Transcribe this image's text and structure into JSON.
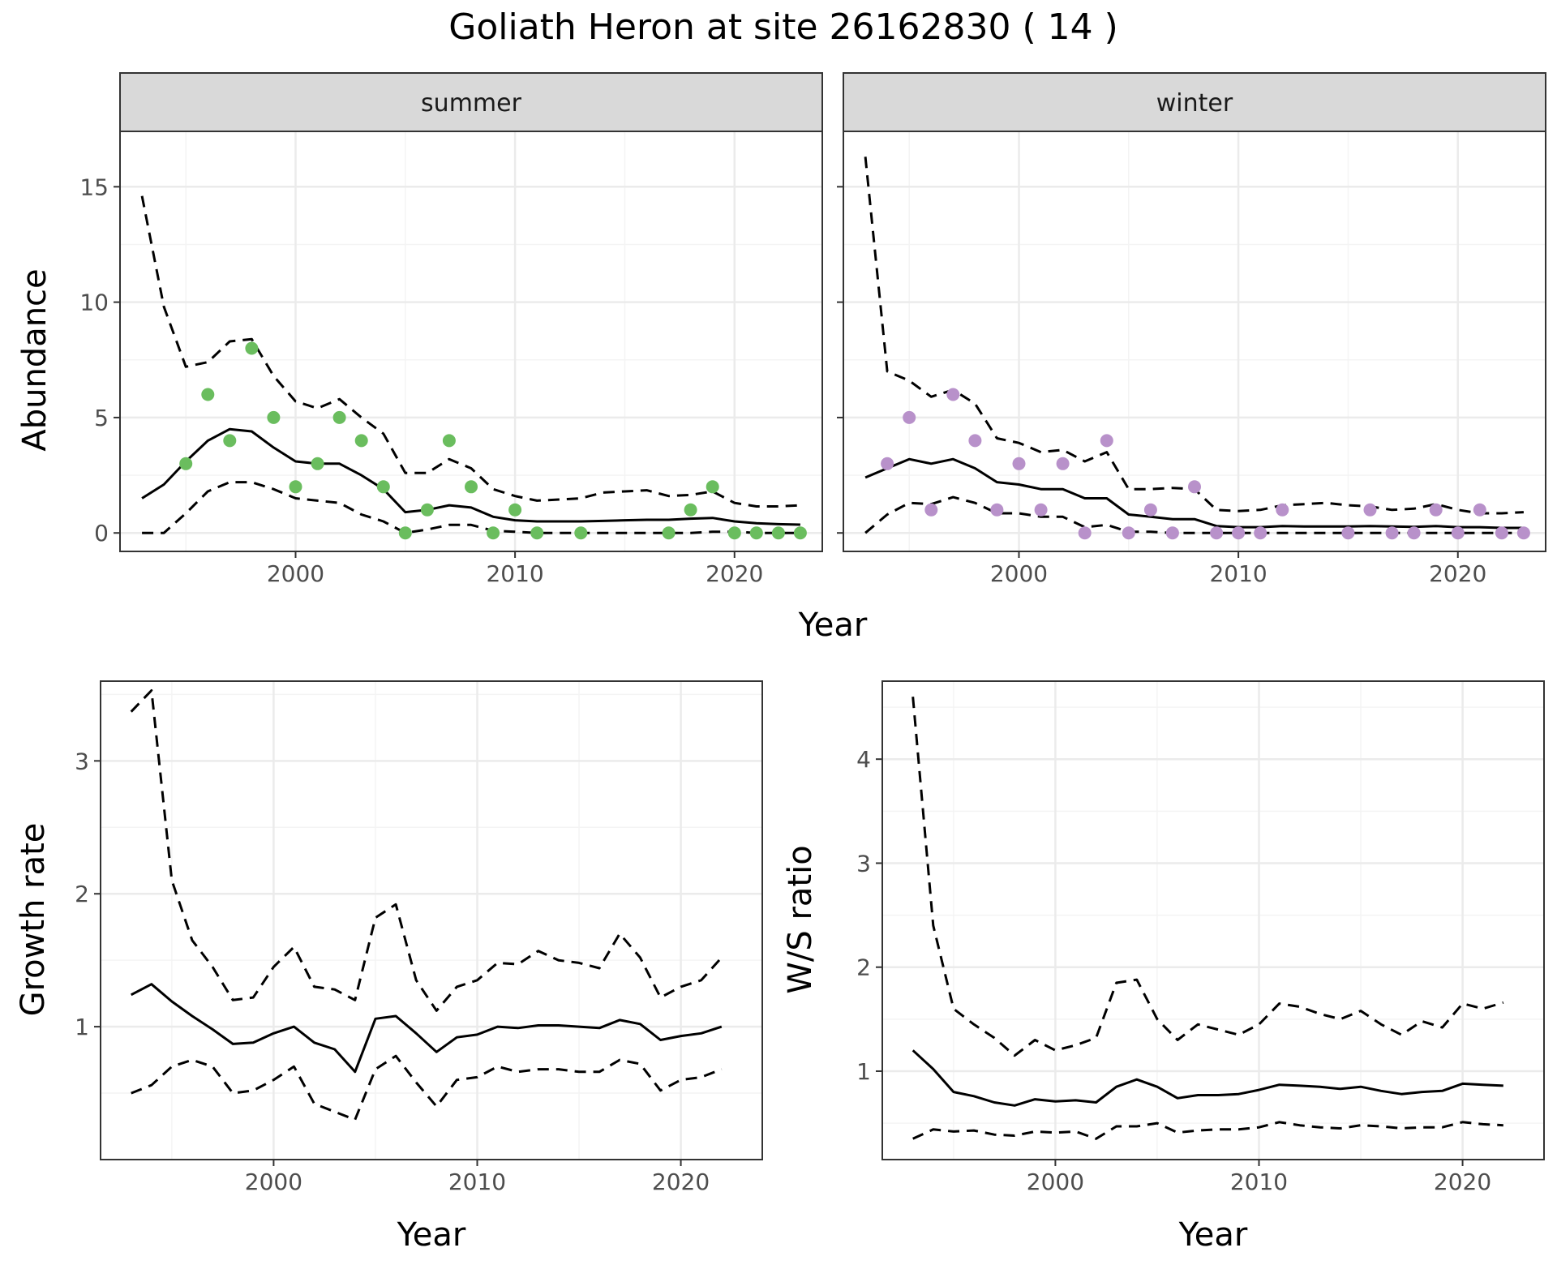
{
  "title": "Goliath Heron at site 26162830 ( 14 )",
  "colors": {
    "summer_points": "#6ABD5E",
    "winter_points": "#B891CA",
    "line": "#000000",
    "strip_bg": "#d9d9d9",
    "grid_major": "#ebebeb",
    "grid_minor": "#f4f4f4",
    "panel_border": "#333333"
  },
  "chart_data": [
    {
      "type": "line",
      "facet": "summer",
      "xlabel": "Year",
      "ylabel": "Abundance",
      "xlim": [
        1992,
        2024
      ],
      "ylim": [
        -0.8,
        17.4
      ],
      "xticks": [
        2000,
        2010,
        2020
      ],
      "yticks": [
        0,
        5,
        10,
        15
      ],
      "years": [
        1993,
        1994,
        1995,
        1996,
        1997,
        1998,
        1999,
        2000,
        2001,
        2002,
        2003,
        2004,
        2005,
        2006,
        2007,
        2008,
        2009,
        2010,
        2011,
        2012,
        2013,
        2014,
        2015,
        2016,
        2017,
        2018,
        2019,
        2020,
        2021,
        2022,
        2023
      ],
      "series": [
        {
          "role": "estimate",
          "values": [
            1.5,
            2.1,
            3.1,
            4.0,
            4.5,
            4.4,
            3.7,
            3.1,
            3.0,
            3.0,
            2.5,
            1.9,
            0.9,
            1.0,
            1.2,
            1.1,
            0.7,
            0.55,
            0.5,
            0.5,
            0.5,
            0.52,
            0.55,
            0.57,
            0.57,
            0.62,
            0.65,
            0.5,
            0.42,
            0.38,
            0.36
          ]
        },
        {
          "role": "upper",
          "values": [
            14.6,
            9.8,
            7.2,
            7.4,
            8.3,
            8.4,
            6.8,
            5.7,
            5.4,
            5.8,
            5.0,
            4.3,
            2.6,
            2.6,
            3.2,
            2.8,
            1.9,
            1.6,
            1.4,
            1.45,
            1.5,
            1.75,
            1.8,
            1.85,
            1.6,
            1.65,
            1.8,
            1.3,
            1.15,
            1.15,
            1.2
          ]
        },
        {
          "role": "lower",
          "values": [
            0,
            0,
            0.85,
            1.8,
            2.2,
            2.2,
            1.9,
            1.5,
            1.4,
            1.3,
            0.8,
            0.5,
            0,
            0.15,
            0.35,
            0.35,
            0.1,
            0.05,
            0,
            0,
            0,
            0,
            0,
            0,
            0,
            0,
            0.05,
            0.05,
            0,
            0,
            0
          ]
        }
      ],
      "points": [
        [
          1995,
          3
        ],
        [
          1996,
          6
        ],
        [
          1997,
          4
        ],
        [
          1998,
          8
        ],
        [
          1999,
          5
        ],
        [
          2000,
          2
        ],
        [
          2001,
          3
        ],
        [
          2002,
          5
        ],
        [
          2003,
          4
        ],
        [
          2004,
          2
        ],
        [
          2005,
          0
        ],
        [
          2006,
          1
        ],
        [
          2007,
          4
        ],
        [
          2008,
          2
        ],
        [
          2009,
          0
        ],
        [
          2010,
          1
        ],
        [
          2011,
          0
        ],
        [
          2013,
          0
        ],
        [
          2017,
          0
        ],
        [
          2018,
          1
        ],
        [
          2019,
          2
        ],
        [
          2020,
          0
        ],
        [
          2021,
          0
        ],
        [
          2022,
          0
        ],
        [
          2023,
          0
        ]
      ]
    },
    {
      "type": "line",
      "facet": "winter",
      "xlabel": "Year",
      "ylabel": "Abundance",
      "xlim": [
        1992,
        2024
      ],
      "ylim": [
        -0.8,
        17.4
      ],
      "xticks": [
        2000,
        2010,
        2020
      ],
      "yticks": [
        0,
        5,
        10,
        15
      ],
      "years": [
        1993,
        1994,
        1995,
        1996,
        1997,
        1998,
        1999,
        2000,
        2001,
        2002,
        2003,
        2004,
        2005,
        2006,
        2007,
        2008,
        2009,
        2010,
        2011,
        2012,
        2013,
        2014,
        2015,
        2016,
        2017,
        2018,
        2019,
        2020,
        2021,
        2022,
        2023
      ],
      "series": [
        {
          "role": "estimate",
          "values": [
            2.4,
            2.8,
            3.2,
            3.0,
            3.2,
            2.8,
            2.2,
            2.1,
            1.9,
            1.9,
            1.5,
            1.5,
            0.8,
            0.7,
            0.6,
            0.6,
            0.3,
            0.25,
            0.25,
            0.3,
            0.28,
            0.28,
            0.28,
            0.3,
            0.28,
            0.26,
            0.3,
            0.25,
            0.25,
            0.22,
            0.22
          ]
        },
        {
          "role": "upper",
          "values": [
            16.3,
            7.0,
            6.6,
            5.9,
            6.2,
            5.6,
            4.1,
            3.9,
            3.5,
            3.6,
            3.1,
            3.5,
            1.9,
            1.9,
            1.95,
            1.9,
            1.0,
            0.95,
            1.0,
            1.2,
            1.25,
            1.3,
            1.2,
            1.15,
            1.0,
            1.05,
            1.25,
            1.0,
            0.85,
            0.85,
            0.9
          ]
        },
        {
          "role": "lower",
          "values": [
            0,
            0.8,
            1.3,
            1.25,
            1.55,
            1.3,
            0.85,
            0.85,
            0.7,
            0.7,
            0.25,
            0.35,
            0.05,
            0.05,
            0,
            0,
            0,
            0,
            0,
            0,
            0,
            0,
            0,
            0,
            0,
            0,
            0,
            0,
            0,
            0,
            0
          ]
        }
      ],
      "points": [
        [
          1994,
          3
        ],
        [
          1995,
          5
        ],
        [
          1996,
          1
        ],
        [
          1997,
          6
        ],
        [
          1998,
          4
        ],
        [
          1999,
          1
        ],
        [
          2000,
          3
        ],
        [
          2001,
          1
        ],
        [
          2002,
          3
        ],
        [
          2003,
          0
        ],
        [
          2004,
          4
        ],
        [
          2005,
          0
        ],
        [
          2006,
          1
        ],
        [
          2007,
          0
        ],
        [
          2008,
          2
        ],
        [
          2009,
          0
        ],
        [
          2010,
          0
        ],
        [
          2011,
          0
        ],
        [
          2012,
          1
        ],
        [
          2015,
          0
        ],
        [
          2016,
          1
        ],
        [
          2017,
          0
        ],
        [
          2018,
          0
        ],
        [
          2019,
          1
        ],
        [
          2020,
          0
        ],
        [
          2021,
          1
        ],
        [
          2022,
          0
        ],
        [
          2023,
          0
        ]
      ]
    },
    {
      "type": "line",
      "facet": "growth",
      "xlabel": "Year",
      "ylabel": "Growth rate",
      "xlim": [
        1991.5,
        2024
      ],
      "ylim": [
        0.0,
        3.6
      ],
      "xticks": [
        2000,
        2010,
        2020
      ],
      "yticks": [
        1,
        2,
        3
      ],
      "years": [
        1993,
        1994,
        1995,
        1996,
        1997,
        1998,
        1999,
        2000,
        2001,
        2002,
        2003,
        2004,
        2005,
        2006,
        2007,
        2008,
        2009,
        2010,
        2011,
        2012,
        2013,
        2014,
        2015,
        2016,
        2017,
        2018,
        2019,
        2020,
        2021,
        2022
      ],
      "series": [
        {
          "role": "estimate",
          "values": [
            1.24,
            1.32,
            1.19,
            1.08,
            0.98,
            0.87,
            0.88,
            0.95,
            1.0,
            0.88,
            0.83,
            0.66,
            1.06,
            1.08,
            0.95,
            0.81,
            0.92,
            0.94,
            1.0,
            0.99,
            1.01,
            1.01,
            1.0,
            0.99,
            1.05,
            1.02,
            0.9,
            0.93,
            0.95,
            1.0
          ]
        },
        {
          "role": "upper",
          "values": [
            3.37,
            3.53,
            2.1,
            1.65,
            1.45,
            1.2,
            1.22,
            1.45,
            1.6,
            1.3,
            1.28,
            1.2,
            1.82,
            1.92,
            1.35,
            1.12,
            1.3,
            1.35,
            1.48,
            1.47,
            1.57,
            1.5,
            1.48,
            1.44,
            1.7,
            1.52,
            1.22,
            1.3,
            1.35,
            1.52
          ]
        },
        {
          "role": "lower",
          "values": [
            0.5,
            0.56,
            0.7,
            0.75,
            0.7,
            0.5,
            0.52,
            0.6,
            0.7,
            0.42,
            0.36,
            0.3,
            0.68,
            0.78,
            0.58,
            0.4,
            0.6,
            0.62,
            0.7,
            0.66,
            0.68,
            0.68,
            0.66,
            0.66,
            0.75,
            0.72,
            0.52,
            0.6,
            0.62,
            0.68
          ]
        }
      ]
    },
    {
      "type": "line",
      "facet": "ratio",
      "xlabel": "Year",
      "ylabel": "W/S ratio",
      "xlim": [
        1991.5,
        2024
      ],
      "ylim": [
        0.15,
        4.75
      ],
      "xticks": [
        2000,
        2010,
        2020
      ],
      "yticks": [
        1,
        2,
        3,
        4
      ],
      "years": [
        1993,
        1994,
        1995,
        1996,
        1997,
        1998,
        1999,
        2000,
        2001,
        2002,
        2003,
        2004,
        2005,
        2006,
        2007,
        2008,
        2009,
        2010,
        2011,
        2012,
        2013,
        2014,
        2015,
        2016,
        2017,
        2018,
        2019,
        2020,
        2021,
        2022
      ],
      "series": [
        {
          "role": "estimate",
          "values": [
            1.2,
            1.02,
            0.8,
            0.76,
            0.7,
            0.67,
            0.73,
            0.71,
            0.72,
            0.7,
            0.85,
            0.92,
            0.85,
            0.74,
            0.77,
            0.77,
            0.78,
            0.82,
            0.87,
            0.86,
            0.85,
            0.83,
            0.85,
            0.81,
            0.78,
            0.8,
            0.81,
            0.88,
            0.87,
            0.86
          ]
        },
        {
          "role": "upper",
          "values": [
            4.6,
            2.4,
            1.6,
            1.45,
            1.32,
            1.15,
            1.3,
            1.2,
            1.25,
            1.32,
            1.85,
            1.88,
            1.5,
            1.3,
            1.45,
            1.4,
            1.35,
            1.45,
            1.65,
            1.62,
            1.55,
            1.5,
            1.58,
            1.45,
            1.35,
            1.48,
            1.42,
            1.65,
            1.6,
            1.66
          ]
        },
        {
          "role": "lower",
          "values": [
            0.35,
            0.44,
            0.42,
            0.43,
            0.39,
            0.38,
            0.42,
            0.41,
            0.42,
            0.35,
            0.47,
            0.47,
            0.5,
            0.41,
            0.43,
            0.44,
            0.44,
            0.46,
            0.51,
            0.48,
            0.46,
            0.45,
            0.48,
            0.47,
            0.45,
            0.46,
            0.46,
            0.51,
            0.49,
            0.48
          ]
        }
      ]
    }
  ],
  "strips": {
    "summer": "summer",
    "winter": "winter"
  },
  "labels": {
    "year_top": "Year",
    "year_growth": "Year",
    "year_ratio": "Year",
    "ylab_abundance": "Abundance",
    "ylab_growth": "Growth rate",
    "ylab_ratio": "W/S ratio"
  }
}
